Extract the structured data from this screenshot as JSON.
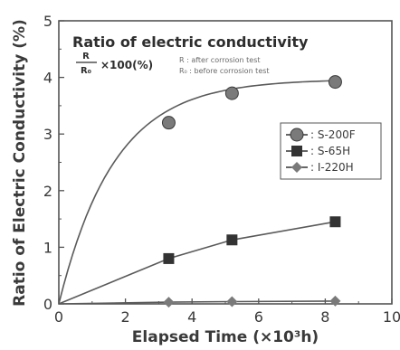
{
  "chart_data": {
    "type": "line",
    "xlabel": "Elapsed Time (×10³h)",
    "ylabel": "Ratio of Electric Conductivity (%)",
    "xlim": [
      0,
      10
    ],
    "ylim": [
      0,
      5
    ],
    "x_ticks": [
      "0",
      "2",
      "4",
      "6",
      "8",
      "10"
    ],
    "y_ticks": [
      "0",
      "1",
      "2",
      "3",
      "4",
      "5"
    ],
    "grid": false,
    "legend_position": "right",
    "series": [
      {
        "name": ": S-200F",
        "marker": "circle",
        "color": "#7a7a7a",
        "x": [
          0,
          3.3,
          5.2,
          8.3
        ],
        "y": [
          0,
          3.2,
          3.72,
          3.92
        ]
      },
      {
        "name": ": S-65H",
        "marker": "square",
        "color": "#333333",
        "x": [
          0,
          3.3,
          5.2,
          8.3
        ],
        "y": [
          0,
          0.8,
          1.13,
          1.45
        ]
      },
      {
        "name": ": I-220H",
        "marker": "diamond",
        "color": "#7a7a7a",
        "x": [
          0,
          3.3,
          5.2,
          8.3
        ],
        "y": [
          0,
          0.03,
          0.04,
          0.05
        ]
      }
    ],
    "annotation": {
      "title": "Ratio of electric conductivity",
      "numerator": "R",
      "denominator": "R₀",
      "multiplier": "×100(%)",
      "note_r": "R : after corrosion test",
      "note_r0": "R₀ : before corrosion test"
    }
  }
}
